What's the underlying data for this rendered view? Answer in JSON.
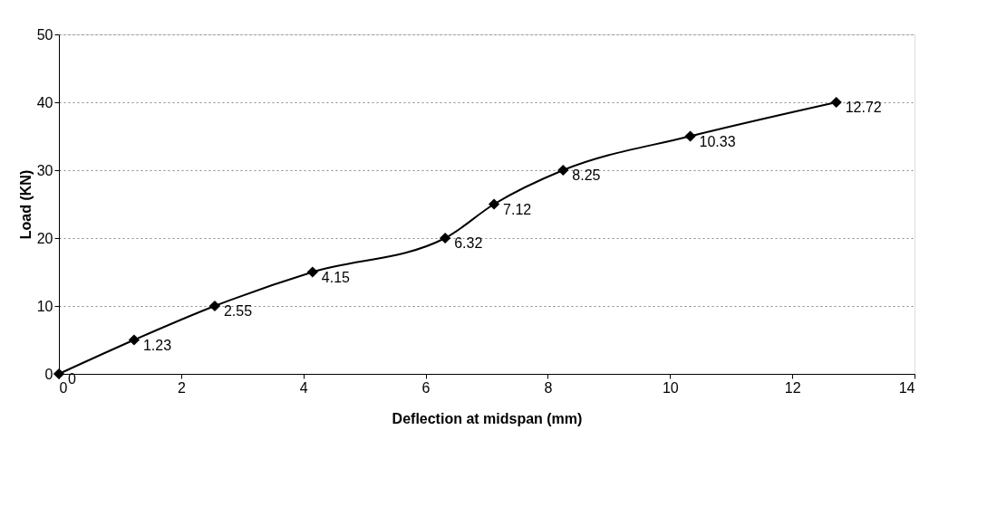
{
  "chart_data": {
    "type": "line",
    "xlabel": "Deflection at midspan (mm)",
    "ylabel": "Load (KN)",
    "x": [
      0,
      1.23,
      2.55,
      4.15,
      6.32,
      7.12,
      8.25,
      10.33,
      12.72
    ],
    "series": [
      {
        "color": "#000000",
        "values": [
          0,
          5,
          10,
          15,
          20,
          25,
          30,
          35,
          40
        ]
      }
    ],
    "value_labels": [
      "0",
      "1.23",
      "2.55",
      "4.15",
      "6.32",
      "7.12",
      "8.25",
      "10.33",
      "12.72"
    ],
    "xlim": [
      0,
      14
    ],
    "xticks": [
      0,
      2,
      4,
      6,
      8,
      10,
      12,
      14
    ],
    "ylim": [
      0,
      50
    ],
    "yticks": [
      0,
      10,
      20,
      30,
      40,
      50
    ],
    "grid": "y",
    "marker": "diamond",
    "line_style": "solid",
    "legend": false
  }
}
